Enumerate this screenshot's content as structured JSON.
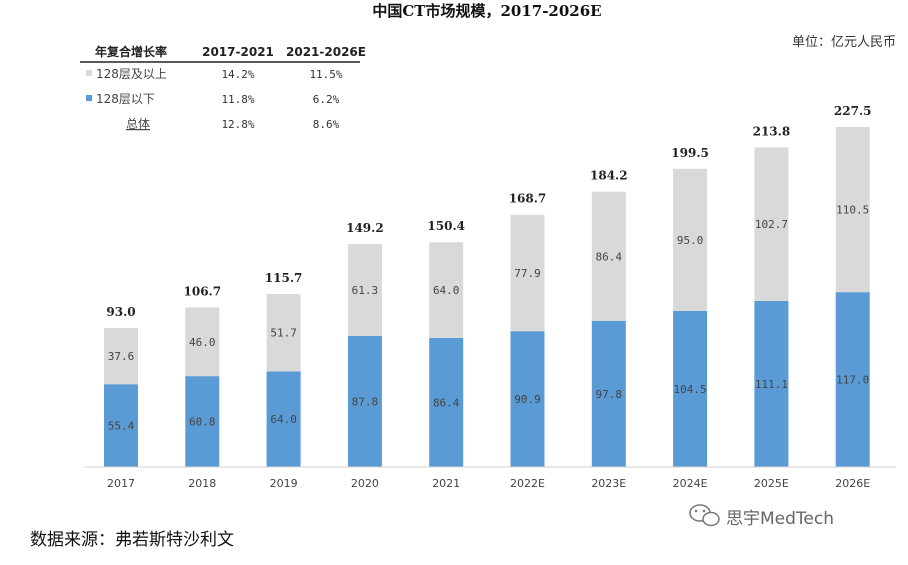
{
  "chart_data": {
    "type": "bar",
    "stacked": true,
    "title": "中国CT市场规模，2017-2026E",
    "unit": "单位：亿元人民币",
    "categories": [
      "2017",
      "2018",
      "2019",
      "2020",
      "2021",
      "2022E",
      "2023E",
      "2024E",
      "2025E",
      "2026E"
    ],
    "series": [
      {
        "name": "128层以下",
        "color": "#5b9bd5",
        "values": [
          55.4,
          60.8,
          64.0,
          87.8,
          86.4,
          90.9,
          97.8,
          104.5,
          111.1,
          117.0
        ]
      },
      {
        "name": "128层及以上",
        "color": "#d9d9d9",
        "values": [
          37.6,
          46.0,
          51.7,
          61.3,
          64.0,
          77.9,
          86.4,
          95.0,
          102.7,
          110.5
        ]
      }
    ],
    "totals": [
      93.0,
      106.7,
      115.7,
      149.2,
      150.4,
      168.7,
      184.2,
      199.5,
      213.8,
      227.5
    ],
    "ylim": [
      0,
      240
    ],
    "grid": false,
    "legend_position": "top-left",
    "growth_table": {
      "header": [
        "年复合增长率",
        "2017-2021",
        "2021-2026E"
      ],
      "rows": [
        {
          "label": "128层及以上",
          "marker_color": "#d9d9d9",
          "values": [
            "14.2%",
            "11.5%"
          ]
        },
        {
          "label": "128层以下",
          "marker_color": "#5b9bd5",
          "values": [
            "11.8%",
            "6.2%"
          ]
        },
        {
          "label": "总体",
          "marker_color": "",
          "values": [
            "12.8%",
            "8.6%"
          ]
        }
      ]
    }
  },
  "source": "数据来源：弗若斯特沙利文",
  "watermark": "思宇MedTech",
  "watermark_icon": "wechat-icon"
}
